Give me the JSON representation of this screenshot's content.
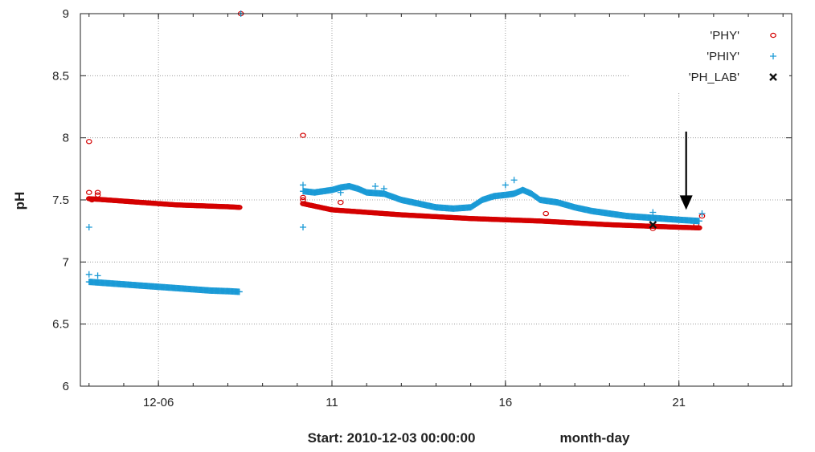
{
  "chart_data": {
    "type": "scatter",
    "ylabel": "pH",
    "xlabel_start": "Start: 2010-12-03 00:00:00",
    "xlabel_unit": "month-day",
    "x_start": "2010-12-03",
    "xlim": [
      "2010-12-03T18:00",
      "2010-12-24T06:00"
    ],
    "ylim": [
      6,
      9
    ],
    "y_ticks": [
      6,
      6.5,
      7,
      7.5,
      8,
      8.5,
      9
    ],
    "x_ticks": [
      {
        "value": "2010-12-06",
        "label": "12-06"
      },
      {
        "value": "2010-12-11",
        "label": "11"
      },
      {
        "value": "2010-12-16",
        "label": "16"
      },
      {
        "value": "2010-12-21",
        "label": "21"
      }
    ],
    "grid": true,
    "legend_position": "top-right",
    "colors": {
      "PHY": "#d40000",
      "PHIY": "#1a9ad6",
      "PH_LAB": "#111111"
    },
    "series": [
      {
        "name": "'PHY'",
        "marker": "circle",
        "segments": [
          [
            [
              "2010-12-04T00:00",
              7.51
            ],
            [
              "2010-12-04T12:00",
              7.5
            ],
            [
              "2010-12-05T00:00",
              7.49
            ],
            [
              "2010-12-05T12:00",
              7.48
            ],
            [
              "2010-12-06T00:00",
              7.47
            ],
            [
              "2010-12-06T12:00",
              7.46
            ],
            [
              "2010-12-07T00:00",
              7.455
            ],
            [
              "2010-12-07T12:00",
              7.45
            ],
            [
              "2010-12-08T00:00",
              7.445
            ],
            [
              "2010-12-08T08:00",
              7.44
            ]
          ],
          [
            [
              "2010-12-10T04:00",
              7.47
            ],
            [
              "2010-12-11T00:00",
              7.42
            ],
            [
              "2010-12-12T00:00",
              7.4
            ],
            [
              "2010-12-13T00:00",
              7.38
            ],
            [
              "2010-12-14T00:00",
              7.365
            ],
            [
              "2010-12-15T00:00",
              7.35
            ],
            [
              "2010-12-16T00:00",
              7.34
            ],
            [
              "2010-12-17T00:00",
              7.33
            ],
            [
              "2010-12-18T00:00",
              7.315
            ],
            [
              "2010-12-19T00:00",
              7.3
            ],
            [
              "2010-12-20T00:00",
              7.29
            ],
            [
              "2010-12-21T00:00",
              7.28
            ],
            [
              "2010-12-21T14:00",
              7.275
            ]
          ]
        ],
        "outliers": [
          [
            "2010-12-04T00:00",
            7.97
          ],
          [
            "2010-12-04T00:00",
            7.56
          ],
          [
            "2010-12-04T06:00",
            7.56
          ],
          [
            "2010-12-04T06:00",
            7.54
          ],
          [
            "2010-12-04T02:00",
            7.5
          ],
          [
            "2010-12-08T09:00",
            9.0
          ],
          [
            "2010-12-10T04:00",
            8.02
          ],
          [
            "2010-12-10T04:00",
            7.52
          ],
          [
            "2010-12-10T04:00",
            7.5
          ],
          [
            "2010-12-11T06:00",
            7.48
          ],
          [
            "2010-12-17T04:00",
            7.39
          ],
          [
            "2010-12-20T06:00",
            7.27
          ],
          [
            "2010-12-21T12:00",
            7.3
          ],
          [
            "2010-12-21T16:00",
            7.37
          ]
        ]
      },
      {
        "name": "'PHIY'",
        "marker": "plus",
        "segments": [
          [
            [
              "2010-12-04T00:00",
              6.84
            ],
            [
              "2010-12-04T12:00",
              6.83
            ],
            [
              "2010-12-05T00:00",
              6.82
            ],
            [
              "2010-12-05T12:00",
              6.81
            ],
            [
              "2010-12-06T00:00",
              6.8
            ],
            [
              "2010-12-06T12:00",
              6.79
            ],
            [
              "2010-12-07T00:00",
              6.78
            ],
            [
              "2010-12-07T12:00",
              6.77
            ],
            [
              "2010-12-08T00:00",
              6.765
            ],
            [
              "2010-12-08T08:00",
              6.76
            ]
          ],
          [
            [
              "2010-12-10T04:00",
              7.57
            ],
            [
              "2010-12-10T12:00",
              7.56
            ],
            [
              "2010-12-11T00:00",
              7.58
            ],
            [
              "2010-12-11T06:00",
              7.6
            ],
            [
              "2010-12-11T12:00",
              7.61
            ],
            [
              "2010-12-11T18:00",
              7.59
            ],
            [
              "2010-12-12T00:00",
              7.56
            ],
            [
              "2010-12-12T12:00",
              7.55
            ],
            [
              "2010-12-13T00:00",
              7.5
            ],
            [
              "2010-12-13T12:00",
              7.47
            ],
            [
              "2010-12-14T00:00",
              7.44
            ],
            [
              "2010-12-14T12:00",
              7.43
            ],
            [
              "2010-12-15T00:00",
              7.44
            ],
            [
              "2010-12-15T08:00",
              7.5
            ],
            [
              "2010-12-15T16:00",
              7.53
            ],
            [
              "2010-12-16T00:00",
              7.54
            ],
            [
              "2010-12-16T06:00",
              7.55
            ],
            [
              "2010-12-16T12:00",
              7.58
            ],
            [
              "2010-12-16T18:00",
              7.55
            ],
            [
              "2010-12-17T00:00",
              7.5
            ],
            [
              "2010-12-17T12:00",
              7.48
            ],
            [
              "2010-12-18T00:00",
              7.44
            ],
            [
              "2010-12-18T12:00",
              7.41
            ],
            [
              "2010-12-19T00:00",
              7.39
            ],
            [
              "2010-12-19T12:00",
              7.37
            ],
            [
              "2010-12-20T00:00",
              7.36
            ],
            [
              "2010-12-20T12:00",
              7.35
            ],
            [
              "2010-12-21T00:00",
              7.34
            ],
            [
              "2010-12-21T14:00",
              7.33
            ]
          ]
        ],
        "outliers": [
          [
            "2010-12-04T00:00",
            7.28
          ],
          [
            "2010-12-04T00:00",
            6.9
          ],
          [
            "2010-12-04T06:00",
            6.89
          ],
          [
            "2010-12-08T09:00",
            9.0
          ],
          [
            "2010-12-10T04:00",
            7.28
          ],
          [
            "2010-12-10T04:00",
            7.62
          ],
          [
            "2010-12-11T06:00",
            7.56
          ],
          [
            "2010-12-12T06:00",
            7.61
          ],
          [
            "2010-12-12T12:00",
            7.59
          ],
          [
            "2010-12-16T06:00",
            7.66
          ],
          [
            "2010-12-16T00:00",
            7.62
          ],
          [
            "2010-12-20T06:00",
            7.4
          ],
          [
            "2010-12-21T16:00",
            7.39
          ]
        ]
      },
      {
        "name": "'PH_LAB'",
        "marker": "cross",
        "points": [
          [
            "2010-12-20T06:00",
            7.3
          ]
        ]
      }
    ],
    "annotations": [
      {
        "type": "arrow",
        "x": "2010-12-21T05:00",
        "y_from": 8.05,
        "y_to": 7.42
      }
    ]
  }
}
